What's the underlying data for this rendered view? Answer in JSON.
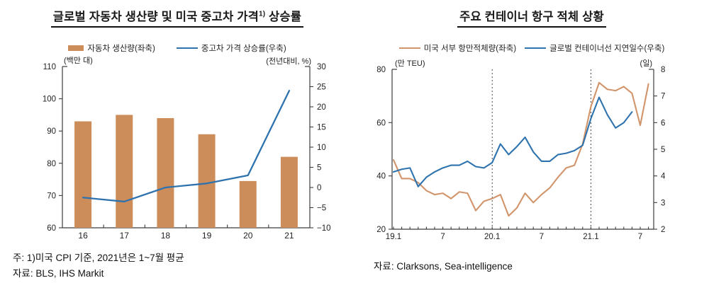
{
  "panels": [
    {
      "title_main": "글로벌 자동차 생산량 및 미국 중고차 가격",
      "title_sup": "1)",
      "title_rest": " 상승률",
      "footnotes": [
        "주: 1)미국 CPI 기준, 2021년은 1~7월 평균",
        "자료: BLS, IHS Markit"
      ]
    },
    {
      "title_main": "주요 컨테이너 항구 적체 상황",
      "title_sup": "",
      "title_rest": "",
      "footnotes": [
        "자료: Clarksons, Sea-intelligence"
      ]
    }
  ],
  "colors": {
    "bar_orange": "#CD8D5A",
    "line_orange": "#D2946B",
    "line_blue": "#2E73AE",
    "axis": "#3c3c3c",
    "dashed_line": "#333333"
  },
  "chart_data": [
    {
      "type": "bar",
      "title": "글로벌 자동차 생산량 및 미국 중고차 가격1) 상승률",
      "categories": [
        "16",
        "17",
        "18",
        "19",
        "20",
        "21"
      ],
      "series": [
        {
          "name": "자동차 생산량(좌축)",
          "kind": "bar",
          "axis": "left",
          "color": "#CD8D5A",
          "values": [
            93,
            95,
            94,
            89,
            74.5,
            82
          ]
        },
        {
          "name": "중고차 가격 상승률(우축)",
          "kind": "line",
          "axis": "right",
          "color": "#2E73AE",
          "values": [
            -2.5,
            -3.5,
            0,
            1,
            3,
            24
          ]
        }
      ],
      "left_axis": {
        "unit": "(백만 대)",
        "min": 60,
        "max": 110,
        "step": 10
      },
      "right_axis": {
        "unit": "(전년대비, %)",
        "min": -10,
        "max": 30,
        "step": 5
      },
      "grid": false,
      "legend_position": "top"
    },
    {
      "type": "line",
      "title": "주요 컨테이너 항구 적체 상황",
      "x": [
        "19.1",
        "19.2",
        "19.3",
        "19.4",
        "19.5",
        "19.6",
        "19.7",
        "19.8",
        "19.9",
        "19.10",
        "19.11",
        "19.12",
        "20.1",
        "20.2",
        "20.3",
        "20.4",
        "20.5",
        "20.6",
        "20.7",
        "20.8",
        "20.9",
        "20.10",
        "20.11",
        "20.12",
        "21.1",
        "21.2",
        "21.3",
        "21.4",
        "21.5",
        "21.6",
        "21.7",
        "21.8"
      ],
      "x_labeled_ticks": [
        {
          "index": 0,
          "label": "19.1"
        },
        {
          "index": 6,
          "label": "7"
        },
        {
          "index": 12,
          "label": "20.1"
        },
        {
          "index": 18,
          "label": "7"
        },
        {
          "index": 24,
          "label": "21.1"
        },
        {
          "index": 30,
          "label": "7"
        }
      ],
      "dashed_vline_indices": [
        12,
        24
      ],
      "series": [
        {
          "name": "미국 서부 항만적체량(좌축)",
          "kind": "line",
          "axis": "left",
          "color": "#D2946B",
          "values": [
            46,
            39,
            39,
            37.5,
            34.5,
            33,
            33.5,
            31.5,
            34,
            33.5,
            27,
            30.5,
            31.5,
            33,
            25,
            28,
            33.5,
            30,
            33,
            35.5,
            39.5,
            43,
            44,
            52,
            66,
            75,
            72.5,
            72,
            73.5,
            71,
            59,
            74.5
          ]
        },
        {
          "name": "글로벌 컨테이너선 지연일수(우축)",
          "kind": "line",
          "axis": "right",
          "color": "#2E73AE",
          "values": [
            4.15,
            4.25,
            4.3,
            3.6,
            3.95,
            4.15,
            4.3,
            4.4,
            4.4,
            4.55,
            4.35,
            4.3,
            4.5,
            5.2,
            4.8,
            5.1,
            5.45,
            4.9,
            4.55,
            4.55,
            4.8,
            4.85,
            4.95,
            5.15,
            6.15,
            6.95,
            6.3,
            5.8,
            6.0,
            6.4
          ]
        }
      ],
      "left_axis": {
        "unit": "(만 TEU)",
        "min": 20,
        "max": 80,
        "step": 20
      },
      "right_axis": {
        "unit": "(일)",
        "min": 2,
        "max": 8,
        "step": 1
      },
      "grid": false,
      "legend_position": "top"
    }
  ]
}
